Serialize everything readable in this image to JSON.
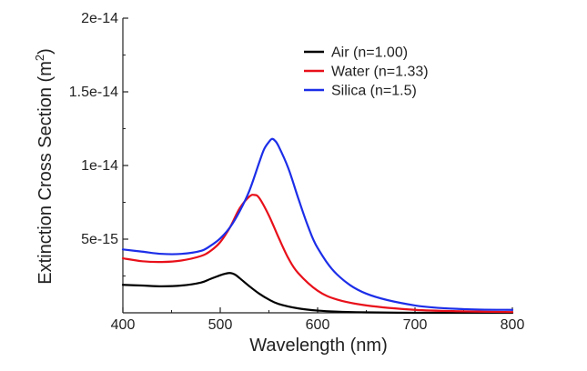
{
  "chart_data": {
    "type": "line",
    "title": "",
    "xlabel": "Wavelength (nm)",
    "ylabel": "Extinction Cross Section (m",
    "ylabel_sup": "2",
    "ylabel_close": ")",
    "xlim": [
      400,
      800
    ],
    "ylim": [
      0,
      2e-14
    ],
    "grid": false,
    "legend_position": "top-right",
    "x_ticks": [
      400,
      500,
      600,
      700,
      800
    ],
    "x_tick_labels": [
      "400",
      "500",
      "600",
      "700",
      "800"
    ],
    "y_ticks": [
      5e-15,
      1e-14,
      1.5e-14,
      2e-14
    ],
    "y_tick_labels": [
      "5e-15",
      "1e-14",
      "1.5e-14",
      "2e-14"
    ],
    "series": [
      {
        "name": "Air (n=1.00)",
        "color": "#000000",
        "x": [
          400,
          420,
          440,
          460,
          480,
          490,
          500,
          505,
          510,
          515,
          520,
          530,
          540,
          550,
          560,
          580,
          600,
          620,
          650,
          700,
          750,
          800
        ],
        "y": [
          1.9e-15,
          1.85e-15,
          1.8e-15,
          1.85e-15,
          2.05e-15,
          2.3e-15,
          2.55e-15,
          2.65e-15,
          2.7e-15,
          2.6e-15,
          2.35e-15,
          1.8e-15,
          1.3e-15,
          9e-16,
          6e-16,
          3e-16,
          1.5e-16,
          8e-17,
          3e-17,
          0,
          0,
          0
        ]
      },
      {
        "name": "Water (n=1.33)",
        "color": "#e8101a",
        "x": [
          400,
          420,
          440,
          460,
          480,
          490,
          500,
          510,
          520,
          530,
          535,
          540,
          550,
          560,
          570,
          580,
          600,
          620,
          650,
          700,
          750,
          800
        ],
        "y": [
          3.7e-15,
          3.5e-15,
          3.45e-15,
          3.55e-15,
          3.85e-15,
          4.2e-15,
          4.8e-15,
          5.8e-15,
          7.1e-15,
          7.9e-15,
          8e-15,
          7.8e-15,
          6.6e-15,
          5.1e-15,
          3.7e-15,
          2.7e-15,
          1.5e-15,
          9e-16,
          5e-16,
          2e-16,
          1e-16,
          5e-17
        ]
      },
      {
        "name": "Silica (n=1.5)",
        "color": "#1c2ee8",
        "x": [
          400,
          420,
          440,
          460,
          480,
          490,
          500,
          510,
          520,
          530,
          540,
          545,
          550,
          553,
          556,
          560,
          570,
          580,
          590,
          600,
          620,
          650,
          700,
          750,
          800
        ],
        "y": [
          4.3e-15,
          4.15e-15,
          4e-15,
          4e-15,
          4.2e-15,
          4.55e-15,
          5.05e-15,
          5.8e-15,
          6.9e-15,
          8.3e-15,
          1.02e-14,
          1.11e-14,
          1.16e-14,
          1.18e-14,
          1.17e-14,
          1.13e-14,
          9.8e-15,
          7.8e-15,
          5.9e-15,
          4.4e-15,
          2.6e-15,
          1.3e-15,
          5e-16,
          2.5e-16,
          2e-16
        ]
      }
    ]
  }
}
